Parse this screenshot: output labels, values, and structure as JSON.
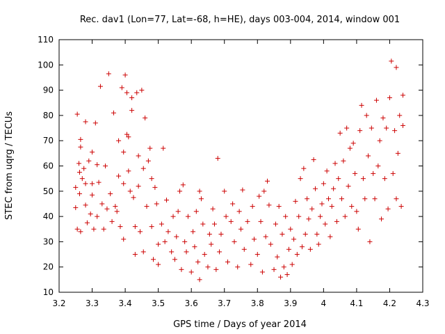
{
  "chart_data": {
    "type": "scatter",
    "title": "Rec. dav1 (Lon=77, Lat=-68, h=HE), days 003-004, 2014, window 001",
    "xlabel": "GPS time / Days of year 2014",
    "ylabel": "STEC from uqrg / TECUs",
    "xlim": [
      3.2,
      4.3
    ],
    "ylim": [
      10,
      110
    ],
    "xticks": [
      "3.2",
      "3.3",
      "3.4",
      "3.5",
      "3.6",
      "3.7",
      "3.8",
      "3.9",
      "4",
      "4.1",
      "4.2",
      "4.3"
    ],
    "yticks": [
      "10",
      "20",
      "30",
      "40",
      "50",
      "60",
      "70",
      "80",
      "90",
      "100",
      "110"
    ],
    "grid": false,
    "marker": "+",
    "color": "#cc0000",
    "series": [
      {
        "name": "STEC",
        "points": [
          [
            3.255,
            80.5
          ],
          [
            3.25,
            51.5
          ],
          [
            3.25,
            43.5
          ],
          [
            3.255,
            35
          ],
          [
            3.265,
            70.5
          ],
          [
            3.265,
            67.5
          ],
          [
            3.26,
            61
          ],
          [
            3.262,
            57.5
          ],
          [
            3.262,
            49
          ],
          [
            3.265,
            34
          ],
          [
            3.27,
            55
          ],
          [
            3.275,
            59
          ],
          [
            3.28,
            77.5
          ],
          [
            3.28,
            53
          ],
          [
            3.28,
            44.5
          ],
          [
            3.285,
            37.5
          ],
          [
            3.29,
            62
          ],
          [
            3.295,
            41
          ],
          [
            3.3,
            65.5
          ],
          [
            3.3,
            53
          ],
          [
            3.3,
            48.5
          ],
          [
            3.305,
            35
          ],
          [
            3.31,
            77
          ],
          [
            3.315,
            60.5
          ],
          [
            3.315,
            40
          ],
          [
            3.32,
            53.5
          ],
          [
            3.325,
            91.5
          ],
          [
            3.33,
            45
          ],
          [
            3.335,
            35
          ],
          [
            3.34,
            60
          ],
          [
            3.345,
            43
          ],
          [
            3.35,
            96.5
          ],
          [
            3.355,
            49
          ],
          [
            3.36,
            38
          ],
          [
            3.365,
            81
          ],
          [
            3.37,
            44
          ],
          [
            3.375,
            42
          ],
          [
            3.38,
            70
          ],
          [
            3.38,
            56
          ],
          [
            3.385,
            36
          ],
          [
            3.39,
            91
          ],
          [
            3.395,
            65.5
          ],
          [
            3.395,
            53
          ],
          [
            3.395,
            31
          ],
          [
            3.4,
            96
          ],
          [
            3.405,
            89
          ],
          [
            3.405,
            72.5
          ],
          [
            3.41,
            71.5
          ],
          [
            3.41,
            58
          ],
          [
            3.415,
            50
          ],
          [
            3.42,
            87
          ],
          [
            3.42,
            82
          ],
          [
            3.425,
            47.5
          ],
          [
            3.43,
            36
          ],
          [
            3.43,
            25
          ],
          [
            3.435,
            89
          ],
          [
            3.44,
            64
          ],
          [
            3.44,
            52
          ],
          [
            3.445,
            34
          ],
          [
            3.45,
            90
          ],
          [
            3.455,
            59
          ],
          [
            3.455,
            26
          ],
          [
            3.46,
            79
          ],
          [
            3.465,
            44
          ],
          [
            3.47,
            62
          ],
          [
            3.475,
            67
          ],
          [
            3.48,
            55
          ],
          [
            3.48,
            36
          ],
          [
            3.485,
            23
          ],
          [
            3.49,
            51.5
          ],
          [
            3.495,
            45
          ],
          [
            3.5,
            29
          ],
          [
            3.5,
            21
          ],
          [
            3.51,
            37
          ],
          [
            3.515,
            67
          ],
          [
            3.52,
            30
          ],
          [
            3.525,
            46.5
          ],
          [
            3.53,
            34
          ],
          [
            3.54,
            26
          ],
          [
            3.545,
            40
          ],
          [
            3.55,
            23
          ],
          [
            3.555,
            32
          ],
          [
            3.56,
            42
          ],
          [
            3.565,
            50
          ],
          [
            3.57,
            19
          ],
          [
            3.575,
            52.5
          ],
          [
            3.58,
            30
          ],
          [
            3.585,
            26
          ],
          [
            3.59,
            40
          ],
          [
            3.6,
            18
          ],
          [
            3.605,
            34
          ],
          [
            3.61,
            28
          ],
          [
            3.615,
            42
          ],
          [
            3.62,
            22
          ],
          [
            3.625,
            50
          ],
          [
            3.625,
            15
          ],
          [
            3.63,
            47
          ],
          [
            3.635,
            37
          ],
          [
            3.64,
            25
          ],
          [
            3.65,
            20
          ],
          [
            3.655,
            33
          ],
          [
            3.66,
            29
          ],
          [
            3.665,
            43
          ],
          [
            3.67,
            37
          ],
          [
            3.675,
            19
          ],
          [
            3.68,
            63
          ],
          [
            3.685,
            26
          ],
          [
            3.69,
            33
          ],
          [
            3.7,
            50
          ],
          [
            3.705,
            40
          ],
          [
            3.71,
            22
          ],
          [
            3.72,
            38
          ],
          [
            3.725,
            45
          ],
          [
            3.73,
            30
          ],
          [
            3.74,
            20
          ],
          [
            3.745,
            42
          ],
          [
            3.75,
            35
          ],
          [
            3.755,
            50.5
          ],
          [
            3.76,
            27
          ],
          [
            3.77,
            38
          ],
          [
            3.78,
            21
          ],
          [
            3.785,
            44
          ],
          [
            3.79,
            31
          ],
          [
            3.8,
            25
          ],
          [
            3.805,
            48
          ],
          [
            3.81,
            38
          ],
          [
            3.815,
            18
          ],
          [
            3.82,
            50
          ],
          [
            3.825,
            32
          ],
          [
            3.83,
            54
          ],
          [
            3.835,
            44.5
          ],
          [
            3.84,
            29
          ],
          [
            3.85,
            19
          ],
          [
            3.855,
            37
          ],
          [
            3.86,
            24
          ],
          [
            3.865,
            44
          ],
          [
            3.87,
            16
          ],
          [
            3.875,
            33
          ],
          [
            3.88,
            20
          ],
          [
            3.885,
            40
          ],
          [
            3.89,
            17
          ],
          [
            3.895,
            27
          ],
          [
            3.9,
            35
          ],
          [
            3.905,
            21
          ],
          [
            3.91,
            31
          ],
          [
            3.915,
            46
          ],
          [
            3.92,
            25
          ],
          [
            3.925,
            40
          ],
          [
            3.93,
            55
          ],
          [
            3.935,
            28
          ],
          [
            3.94,
            59
          ],
          [
            3.945,
            33
          ],
          [
            3.95,
            47
          ],
          [
            3.955,
            39
          ],
          [
            3.96,
            27
          ],
          [
            3.965,
            43
          ],
          [
            3.97,
            62.5
          ],
          [
            3.975,
            51
          ],
          [
            3.98,
            33
          ],
          [
            3.985,
            29
          ],
          [
            3.99,
            40
          ],
          [
            3.995,
            45
          ],
          [
            4.0,
            53
          ],
          [
            4.005,
            37
          ],
          [
            4.01,
            58
          ],
          [
            4.015,
            47
          ],
          [
            4.02,
            32
          ],
          [
            4.025,
            44
          ],
          [
            4.03,
            51
          ],
          [
            4.035,
            61
          ],
          [
            4.04,
            38
          ],
          [
            4.045,
            55
          ],
          [
            4.05,
            73
          ],
          [
            4.055,
            47
          ],
          [
            4.06,
            62
          ],
          [
            4.065,
            40
          ],
          [
            4.07,
            75
          ],
          [
            4.075,
            52
          ],
          [
            4.08,
            67
          ],
          [
            4.085,
            44
          ],
          [
            4.09,
            69
          ],
          [
            4.095,
            57
          ],
          [
            4.1,
            42
          ],
          [
            4.105,
            35
          ],
          [
            4.11,
            74
          ],
          [
            4.115,
            84
          ],
          [
            4.12,
            55
          ],
          [
            4.125,
            47
          ],
          [
            4.13,
            80
          ],
          [
            4.135,
            64
          ],
          [
            4.14,
            30
          ],
          [
            4.145,
            75
          ],
          [
            4.15,
            57
          ],
          [
            4.155,
            47
          ],
          [
            4.16,
            86
          ],
          [
            4.165,
            60
          ],
          [
            4.17,
            70
          ],
          [
            4.175,
            39
          ],
          [
            4.18,
            79
          ],
          [
            4.185,
            55
          ],
          [
            4.19,
            75
          ],
          [
            4.195,
            43
          ],
          [
            4.2,
            87
          ],
          [
            4.205,
            101.5
          ],
          [
            4.21,
            57
          ],
          [
            4.215,
            74
          ],
          [
            4.22,
            99
          ],
          [
            4.22,
            47
          ],
          [
            4.225,
            65
          ],
          [
            4.23,
            80
          ],
          [
            4.235,
            44
          ],
          [
            4.24,
            88
          ],
          [
            4.24,
            76
          ]
        ]
      }
    ]
  }
}
